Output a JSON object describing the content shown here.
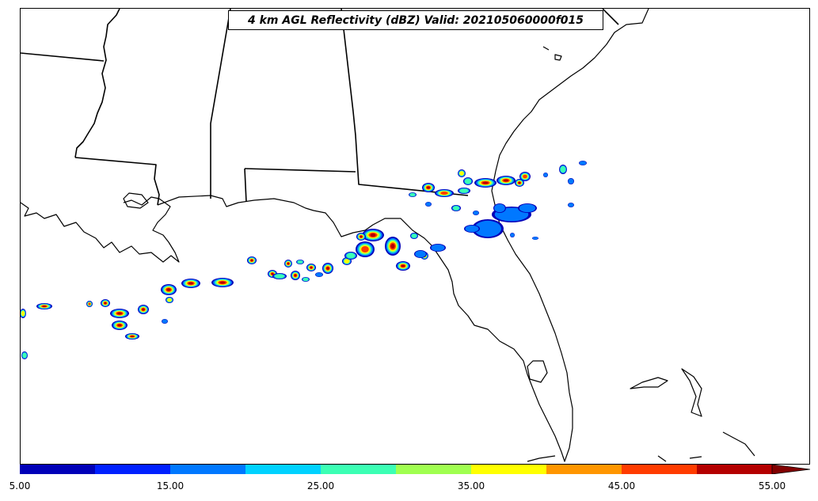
{
  "title": "4 km AGL Reflectivity (dBZ) Valid: 202105060000f015",
  "colorbar": {
    "bins": [
      {
        "from": 5,
        "to": 10,
        "color": "#0000b8"
      },
      {
        "from": 10,
        "to": 15,
        "color": "#0020ff"
      },
      {
        "from": 15,
        "to": 20,
        "color": "#0078ff"
      },
      {
        "from": 20,
        "to": 25,
        "color": "#00d2ff"
      },
      {
        "from": 25,
        "to": 30,
        "color": "#3cffb4"
      },
      {
        "from": 30,
        "to": 35,
        "color": "#a0ff50"
      },
      {
        "from": 35,
        "to": 40,
        "color": "#ffff00"
      },
      {
        "from": 40,
        "to": 45,
        "color": "#ff9600"
      },
      {
        "from": 45,
        "to": 50,
        "color": "#ff3c00"
      },
      {
        "from": 50,
        "to": 55,
        "color": "#b40000"
      }
    ],
    "extend_color": "#820000",
    "ticks": [
      "5.00",
      "15.00",
      "25.00",
      "35.00",
      "45.00",
      "55.00"
    ]
  },
  "basemap": {
    "line_color": "#000000",
    "background": "#ffffff"
  }
}
